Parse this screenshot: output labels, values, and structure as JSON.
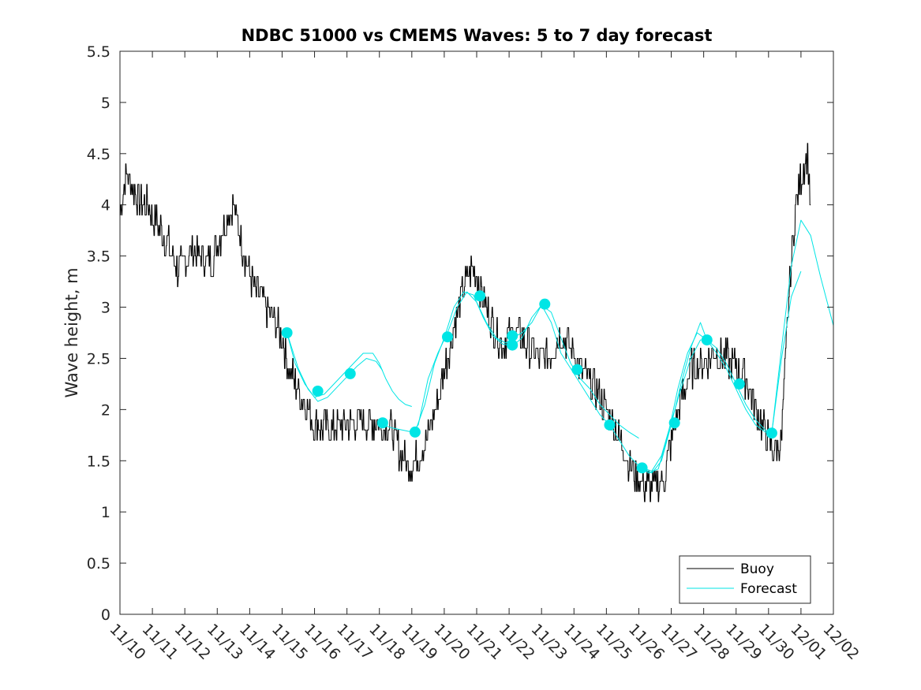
{
  "chart_data": {
    "type": "line",
    "title": "NDBC 51000 vs CMEMS Waves: 5 to 7 day forecast",
    "xlabel": "",
    "ylabel": "Wave height, m",
    "xlim": [
      0,
      22
    ],
    "ylim": [
      0,
      5.5
    ],
    "x_tick_labels": [
      "11/10",
      "11/11",
      "11/12",
      "11/13",
      "11/14",
      "11/15",
      "11/16",
      "11/17",
      "11/18",
      "11/19",
      "11/20",
      "11/21",
      "11/22",
      "11/23",
      "11/24",
      "11/25",
      "11/26",
      "11/27",
      "11/28",
      "11/29",
      "11/30",
      "12/01",
      "12/02"
    ],
    "y_ticks": [
      0,
      0.5,
      1,
      1.5,
      2,
      2.5,
      3,
      3.5,
      4,
      4.5,
      5,
      5.5
    ],
    "y_tick_labels": [
      "0",
      "0.5",
      "1",
      "1.5",
      "2",
      "2.5",
      "3",
      "3.5",
      "4",
      "4.5",
      "5",
      "5.5"
    ],
    "grid": false,
    "legend_position": "bottom-right",
    "colors": {
      "buoy": "#000000",
      "forecast": "#00e5e5"
    },
    "series": [
      {
        "name": "Buoy",
        "color": "#000000",
        "x": [
          0,
          0.2,
          0.5,
          0.8,
          1.2,
          1.5,
          1.8,
          2.2,
          2.5,
          2.8,
          3.0,
          3.3,
          3.5,
          3.7,
          4.0,
          4.2,
          4.5,
          4.8,
          5.0,
          5.2,
          5.5,
          5.8,
          6.0,
          6.5,
          7.0,
          7.5,
          8.0,
          8.3,
          8.6,
          8.9,
          9.2,
          9.5,
          9.8,
          10.0,
          10.3,
          10.6,
          10.9,
          11.2,
          11.5,
          11.8,
          12.0,
          12.3,
          12.6,
          13.0,
          13.3,
          13.6,
          14.0,
          14.3,
          14.6,
          15.0,
          15.3,
          15.6,
          15.9,
          16.2,
          16.5,
          16.8,
          17.0,
          17.3,
          17.6,
          18.0,
          18.3,
          18.6,
          19.0,
          19.3,
          19.6,
          20.0,
          20.2,
          20.4,
          20.6,
          20.8,
          21.0,
          21.2,
          21.3
        ],
        "y": [
          3.95,
          4.3,
          4.1,
          4.0,
          3.8,
          3.6,
          3.35,
          3.55,
          3.5,
          3.45,
          3.6,
          3.9,
          4.0,
          3.7,
          3.3,
          3.15,
          3.0,
          2.85,
          2.7,
          2.4,
          2.2,
          2.0,
          1.85,
          1.8,
          1.85,
          1.9,
          1.85,
          1.85,
          1.6,
          1.45,
          1.55,
          1.75,
          2.1,
          2.4,
          2.8,
          3.2,
          3.4,
          3.1,
          2.8,
          2.65,
          2.7,
          2.75,
          2.6,
          2.5,
          2.55,
          2.75,
          2.55,
          2.35,
          2.2,
          2.0,
          1.8,
          1.55,
          1.35,
          1.25,
          1.25,
          1.35,
          1.7,
          2.1,
          2.4,
          2.45,
          2.55,
          2.5,
          2.45,
          2.3,
          2.0,
          1.7,
          1.6,
          1.7,
          3.0,
          3.9,
          4.3,
          4.5,
          4.0
        ]
      },
      {
        "name": "Forecast",
        "color": "#00e5e5",
        "x": [
          5.15,
          5.4,
          5.7,
          6.0,
          6.3,
          6.6,
          6.9,
          7.2,
          7.5,
          7.8,
          8.0,
          8.2,
          8.4,
          8.6,
          8.8,
          9.0
        ],
        "y": [
          2.75,
          2.45,
          2.25,
          2.12,
          2.15,
          2.25,
          2.35,
          2.45,
          2.55,
          2.55,
          2.45,
          2.3,
          2.18,
          2.1,
          2.05,
          2.03
        ]
      },
      {
        "name": "Forecast",
        "color": "#00e5e5",
        "x": [
          5.15,
          5.5,
          5.8,
          6.1,
          6.4,
          6.7,
          7.0,
          7.3,
          7.6,
          7.9,
          8.1
        ],
        "y": [
          2.75,
          2.4,
          2.2,
          2.08,
          2.12,
          2.22,
          2.32,
          2.42,
          2.5,
          2.47,
          2.38
        ]
      },
      {
        "name": "Forecast",
        "color": "#00e5e5",
        "x": [
          8.1,
          8.4,
          8.7,
          9.0,
          9.2,
          9.5,
          9.8,
          10.1,
          10.4,
          10.7,
          11.0,
          11.3,
          11.6,
          11.9,
          12.1,
          12.4,
          12.7,
          13.0,
          13.3,
          13.6,
          13.9,
          14.2,
          14.5,
          14.8,
          15.1,
          15.4,
          15.7,
          16.0
        ],
        "y": [
          1.85,
          1.82,
          1.8,
          1.78,
          1.85,
          2.3,
          2.55,
          2.75,
          3.0,
          3.15,
          3.05,
          2.85,
          2.7,
          2.65,
          2.7,
          2.75,
          2.85,
          3.02,
          2.95,
          2.7,
          2.45,
          2.3,
          2.2,
          2.05,
          1.95,
          1.85,
          1.78,
          1.72
        ]
      },
      {
        "name": "Forecast",
        "color": "#00e5e5",
        "x": [
          9.1,
          9.4,
          9.7,
          10.0,
          10.3,
          10.6,
          10.9,
          11.2,
          11.5,
          11.8,
          12.1,
          12.4,
          12.7,
          13.0,
          13.3,
          13.6,
          13.9,
          14.2,
          14.5,
          14.8,
          15.1,
          15.4,
          15.7,
          16.0,
          16.3,
          16.6,
          16.9,
          17.2,
          17.5,
          17.8,
          18.1
        ],
        "y": [
          1.78,
          2.05,
          2.45,
          2.7,
          3.0,
          3.15,
          3.12,
          2.9,
          2.72,
          2.64,
          2.62,
          2.7,
          2.9,
          3.02,
          2.85,
          2.55,
          2.4,
          2.25,
          2.1,
          1.95,
          1.85,
          1.7,
          1.55,
          1.45,
          1.38,
          1.42,
          1.75,
          2.2,
          2.55,
          2.75,
          2.68
        ]
      },
      {
        "name": "Forecast",
        "color": "#00e5e5",
        "x": [
          16.1,
          16.4,
          16.7,
          17.0,
          17.3,
          17.6,
          17.9,
          18.1,
          18.4,
          18.7,
          19.0,
          19.3,
          19.6,
          19.9,
          20.1,
          20.4,
          20.7,
          21.0,
          21.3,
          21.6,
          22.0
        ],
        "y": [
          1.43,
          1.4,
          1.55,
          1.88,
          2.2,
          2.5,
          2.68,
          2.68,
          2.6,
          2.45,
          2.25,
          2.05,
          1.9,
          1.8,
          1.77,
          2.6,
          3.4,
          3.85,
          3.7,
          3.3,
          2.82
        ]
      },
      {
        "name": "Forecast",
        "color": "#00e5e5",
        "x": [
          16.1,
          16.4,
          16.7,
          17.0,
          17.3,
          17.6,
          17.9,
          18.1,
          18.4,
          18.7,
          19.0,
          19.3,
          19.6,
          19.9,
          20.1,
          20.4,
          20.7,
          21.0
        ],
        "y": [
          1.43,
          1.38,
          1.5,
          1.85,
          2.25,
          2.6,
          2.85,
          2.68,
          2.55,
          2.4,
          2.2,
          2.0,
          1.85,
          1.78,
          1.77,
          2.5,
          3.1,
          3.35
        ]
      }
    ],
    "forecast_markers": {
      "x": [
        5.15,
        6.1,
        7.1,
        8.1,
        9.1,
        10.1,
        11.1,
        12.1,
        12.1,
        13.1,
        14.1,
        15.1,
        16.1,
        17.1,
        18.1,
        19.1,
        20.1
      ],
      "y": [
        2.75,
        2.18,
        2.35,
        1.87,
        1.78,
        2.71,
        3.11,
        2.72,
        2.63,
        3.03,
        2.39,
        1.85,
        1.43,
        1.87,
        2.68,
        2.25,
        1.77
      ]
    },
    "legend": [
      "Buoy",
      "Forecast"
    ]
  }
}
